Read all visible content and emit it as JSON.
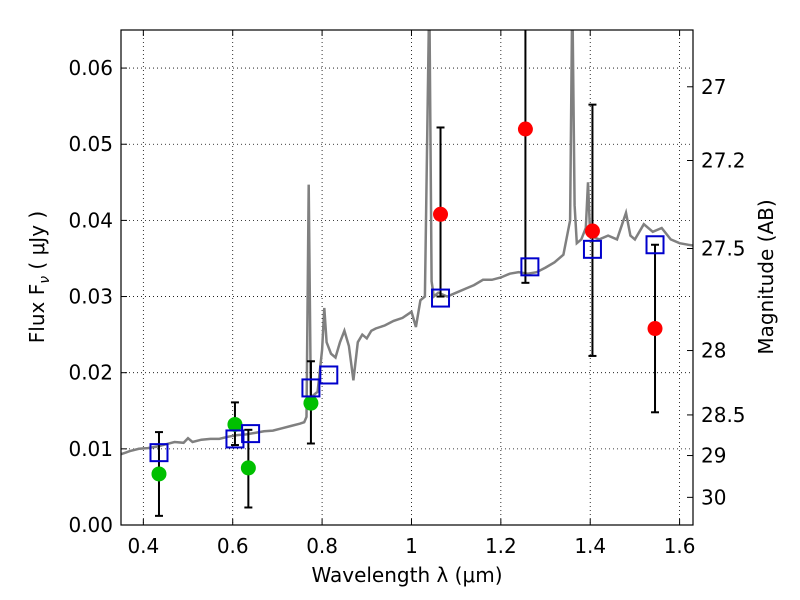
{
  "chart_data": {
    "type": "scatter",
    "xlabel": "Wavelength  λ (μm)",
    "ylabel": "Flux  F",
    "ylabel_symbol": "ν",
    "ylabel_units": " ( μJy )",
    "y2label": "Magnitude (AB)",
    "xlim": [
      0.35,
      1.63
    ],
    "ylim": [
      0.0,
      0.065
    ],
    "grid": true,
    "x_ticks": [
      0.4,
      0.6,
      0.8,
      1.0,
      1.2,
      1.4,
      1.6
    ],
    "x_tick_labels": [
      "0.4",
      "0.6",
      "0.8",
      "1",
      "1.2",
      "1.4",
      "1.6"
    ],
    "y_ticks": [
      0.0,
      0.01,
      0.02,
      0.03,
      0.04,
      0.05,
      0.06
    ],
    "y_tick_labels": [
      "0.00",
      "0.01",
      "0.02",
      "0.03",
      "0.04",
      "0.05",
      "0.06"
    ],
    "y2_ticks": [
      27,
      27.2,
      27.5,
      28,
      28.5,
      29,
      30
    ],
    "y2_tick_labels": [
      "27",
      "27.2",
      "27.5",
      "28",
      "28.5",
      "29",
      "30"
    ],
    "colors": {
      "spectrum": "#808080",
      "green_points": "#00c000",
      "red_points": "#ff0000",
      "model_boxes": "#0000cc",
      "errorbars": "#000000"
    },
    "spectrum": [
      [
        0.35,
        0.0093
      ],
      [
        0.37,
        0.0097
      ],
      [
        0.39,
        0.01
      ],
      [
        0.41,
        0.0101
      ],
      [
        0.43,
        0.0103
      ],
      [
        0.45,
        0.0106
      ],
      [
        0.47,
        0.0109
      ],
      [
        0.49,
        0.0108
      ],
      [
        0.5,
        0.0114
      ],
      [
        0.51,
        0.0109
      ],
      [
        0.53,
        0.0112
      ],
      [
        0.55,
        0.0113
      ],
      [
        0.57,
        0.0113
      ],
      [
        0.59,
        0.0116
      ],
      [
        0.61,
        0.0118
      ],
      [
        0.63,
        0.0119
      ],
      [
        0.65,
        0.0121
      ],
      [
        0.67,
        0.0123
      ],
      [
        0.69,
        0.0124
      ],
      [
        0.71,
        0.0127
      ],
      [
        0.73,
        0.013
      ],
      [
        0.75,
        0.0133
      ],
      [
        0.76,
        0.0135
      ],
      [
        0.765,
        0.0142
      ],
      [
        0.77,
        0.0447
      ],
      [
        0.775,
        0.016
      ],
      [
        0.78,
        0.017
      ],
      [
        0.79,
        0.0175
      ],
      [
        0.8,
        0.023
      ],
      [
        0.805,
        0.0285
      ],
      [
        0.81,
        0.024
      ],
      [
        0.82,
        0.0225
      ],
      [
        0.83,
        0.022
      ],
      [
        0.84,
        0.024
      ],
      [
        0.85,
        0.0255
      ],
      [
        0.86,
        0.0235
      ],
      [
        0.87,
        0.019
      ],
      [
        0.88,
        0.024
      ],
      [
        0.89,
        0.025
      ],
      [
        0.9,
        0.0245
      ],
      [
        0.91,
        0.0255
      ],
      [
        0.92,
        0.0258
      ],
      [
        0.93,
        0.026
      ],
      [
        0.94,
        0.0262
      ],
      [
        0.96,
        0.0268
      ],
      [
        0.98,
        0.0272
      ],
      [
        1.0,
        0.028
      ],
      [
        1.01,
        0.026
      ],
      [
        1.02,
        0.0295
      ],
      [
        1.03,
        0.03
      ],
      [
        1.04,
        0.07
      ],
      [
        1.045,
        0.032
      ],
      [
        1.05,
        0.03
      ],
      [
        1.06,
        0.0305
      ],
      [
        1.08,
        0.03
      ],
      [
        1.1,
        0.0305
      ],
      [
        1.12,
        0.031
      ],
      [
        1.14,
        0.0315
      ],
      [
        1.16,
        0.0322
      ],
      [
        1.18,
        0.0322
      ],
      [
        1.2,
        0.0325
      ],
      [
        1.22,
        0.033
      ],
      [
        1.24,
        0.0332
      ],
      [
        1.26,
        0.033
      ],
      [
        1.28,
        0.0332
      ],
      [
        1.3,
        0.0338
      ],
      [
        1.32,
        0.0345
      ],
      [
        1.34,
        0.0355
      ],
      [
        1.355,
        0.04
      ],
      [
        1.36,
        0.07
      ],
      [
        1.365,
        0.042
      ],
      [
        1.37,
        0.037
      ],
      [
        1.38,
        0.0375
      ],
      [
        1.39,
        0.039
      ],
      [
        1.395,
        0.045
      ],
      [
        1.4,
        0.038
      ],
      [
        1.42,
        0.0375
      ],
      [
        1.44,
        0.038
      ],
      [
        1.46,
        0.0375
      ],
      [
        1.48,
        0.041
      ],
      [
        1.49,
        0.038
      ],
      [
        1.5,
        0.0375
      ],
      [
        1.52,
        0.0395
      ],
      [
        1.54,
        0.0385
      ],
      [
        1.56,
        0.039
      ],
      [
        1.58,
        0.0375
      ],
      [
        1.6,
        0.037
      ],
      [
        1.62,
        0.0368
      ],
      [
        1.63,
        0.0367
      ]
    ],
    "series": [
      {
        "marker": "green-circle",
        "x": [
          0.435,
          0.605,
          0.635,
          0.775
        ],
        "y": [
          0.0067,
          0.0132,
          0.0075,
          0.016
        ],
        "yerr_low": [
          0.0012,
          0.0105,
          0.0023,
          0.0107
        ],
        "yerr_high": [
          0.0122,
          0.0161,
          0.0125,
          0.0215
        ]
      },
      {
        "marker": "red-circle",
        "x": [
          1.065,
          1.255,
          1.405,
          1.545
        ],
        "y": [
          0.0408,
          0.052,
          0.0386,
          0.0258
        ],
        "yerr_low": [
          0.03,
          0.0318,
          0.0222,
          0.0148
        ],
        "yerr_high": [
          0.0522,
          0.07,
          0.0552,
          0.0368
        ]
      },
      {
        "marker": "blue-open-square",
        "x": [
          0.435,
          0.605,
          0.64,
          0.775,
          0.815,
          1.065,
          1.265,
          1.405,
          1.545
        ],
        "y": [
          0.0095,
          0.0113,
          0.012,
          0.018,
          0.0197,
          0.0298,
          0.0339,
          0.0362,
          0.0368
        ]
      }
    ]
  }
}
